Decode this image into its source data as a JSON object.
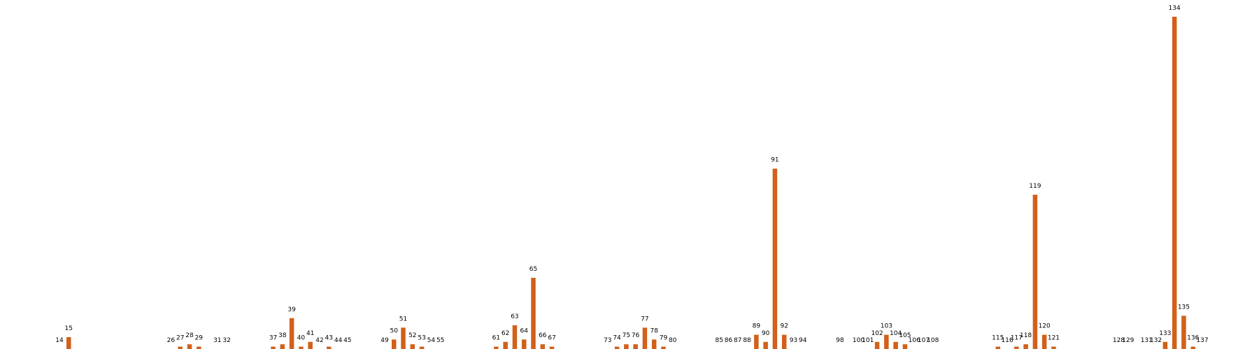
{
  "chart_data": {
    "type": "bar",
    "color": "#d2601a",
    "x": [
      14,
      15,
      26,
      27,
      28,
      29,
      31,
      32,
      37,
      38,
      39,
      40,
      41,
      42,
      43,
      44,
      45,
      49,
      50,
      51,
      52,
      53,
      54,
      55,
      61,
      62,
      63,
      64,
      65,
      66,
      67,
      73,
      74,
      75,
      76,
      77,
      78,
      79,
      80,
      85,
      86,
      87,
      88,
      89,
      90,
      91,
      92,
      93,
      94,
      98,
      100,
      101,
      102,
      103,
      104,
      105,
      106,
      107,
      108,
      115,
      116,
      117,
      118,
      119,
      120,
      121,
      128,
      129,
      131,
      132,
      133,
      134,
      135,
      136,
      137
    ],
    "values": [
      0,
      5,
      0,
      1,
      2,
      1,
      0,
      0,
      1,
      2,
      13,
      1,
      3,
      0,
      1,
      0,
      0,
      0,
      4,
      9,
      2,
      1,
      0,
      0,
      1,
      3,
      10,
      4,
      30,
      2,
      1,
      0,
      1,
      2,
      2,
      9,
      4,
      1,
      0,
      0,
      0,
      0,
      0,
      6,
      3,
      76,
      6,
      0,
      0,
      0,
      0,
      0,
      3,
      6,
      3,
      2,
      0,
      0,
      0,
      1,
      0,
      1,
      2,
      65,
      6,
      1,
      0,
      0,
      0,
      0,
      3,
      140,
      14,
      1,
      0
    ],
    "ylim": [
      0,
      140
    ]
  }
}
